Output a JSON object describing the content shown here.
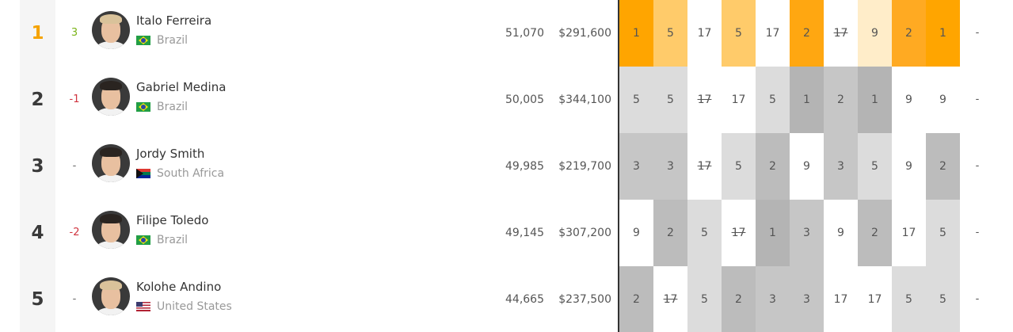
{
  "rows": [
    {
      "rank": "1",
      "change": "3",
      "change_dir": "up",
      "name": "Italo Ferreira",
      "country": "Brazil",
      "flag": "br",
      "hair": "blonde",
      "points": "51,070",
      "prize": "$291,600",
      "results": [
        "1",
        "5",
        "17",
        "5",
        "17",
        "2",
        "17",
        "9",
        "2",
        "1"
      ],
      "dropped": [
        6
      ],
      "cell_colors": [
        "#ffa500",
        "#ffcb6a",
        "#ffffff",
        "#ffcb6a",
        "#ffffff",
        "#ffa711",
        "#ffffff",
        "#ffedc9",
        "#ffaa22",
        "#ffa500"
      ],
      "tail": "-"
    },
    {
      "rank": "2",
      "change": "-1",
      "change_dir": "down",
      "name": "Gabriel Medina",
      "country": "Brazil",
      "flag": "br",
      "hair": "dark",
      "points": "50,005",
      "prize": "$344,100",
      "results": [
        "5",
        "5",
        "17",
        "17",
        "5",
        "1",
        "2",
        "1",
        "9",
        "9"
      ],
      "dropped": [
        2
      ],
      "cell_colors": [
        "#dcdcdc",
        "#dcdcdc",
        "#ffffff",
        "#ffffff",
        "#dcdcdc",
        "#b4b4b4",
        "#c6c6c6",
        "#b4b4b4",
        "#ffffff",
        "#ffffff"
      ],
      "tail": "-"
    },
    {
      "rank": "3",
      "change": "-",
      "change_dir": "none",
      "name": "Jordy Smith",
      "country": "South Africa",
      "flag": "za",
      "hair": "dark",
      "points": "49,985",
      "prize": "$219,700",
      "results": [
        "3",
        "3",
        "17",
        "5",
        "2",
        "9",
        "3",
        "5",
        "9",
        "2"
      ],
      "dropped": [
        2
      ],
      "cell_colors": [
        "#c6c6c6",
        "#c6c6c6",
        "#ffffff",
        "#dcdcdc",
        "#bcbcbc",
        "#ffffff",
        "#c6c6c6",
        "#dcdcdc",
        "#ffffff",
        "#bcbcbc"
      ],
      "tail": "-"
    },
    {
      "rank": "4",
      "change": "-2",
      "change_dir": "down",
      "name": "Filipe Toledo",
      "country": "Brazil",
      "flag": "br",
      "hair": "dark",
      "points": "49,145",
      "prize": "$307,200",
      "results": [
        "9",
        "2",
        "5",
        "17",
        "1",
        "3",
        "9",
        "2",
        "17",
        "5"
      ],
      "dropped": [
        3
      ],
      "cell_colors": [
        "#ffffff",
        "#bcbcbc",
        "#dcdcdc",
        "#ffffff",
        "#b4b4b4",
        "#c6c6c6",
        "#ffffff",
        "#bcbcbc",
        "#ffffff",
        "#dcdcdc"
      ],
      "tail": "-"
    },
    {
      "rank": "5",
      "change": "-",
      "change_dir": "none",
      "name": "Kolohe Andino",
      "country": "United States",
      "flag": "us",
      "hair": "blonde",
      "points": "44,665",
      "prize": "$237,500",
      "results": [
        "2",
        "17",
        "5",
        "2",
        "3",
        "3",
        "17",
        "17",
        "5",
        "5"
      ],
      "dropped": [
        1
      ],
      "cell_colors": [
        "#bcbcbc",
        "#ffffff",
        "#dcdcdc",
        "#bcbcbc",
        "#c6c6c6",
        "#c6c6c6",
        "#ffffff",
        "#ffffff",
        "#dcdcdc",
        "#dcdcdc"
      ],
      "tail": "-"
    }
  ],
  "colors": {
    "leader_rank": "#f5a300",
    "up": "#7ab317",
    "down": "#d0343f",
    "divider": "#333333"
  }
}
